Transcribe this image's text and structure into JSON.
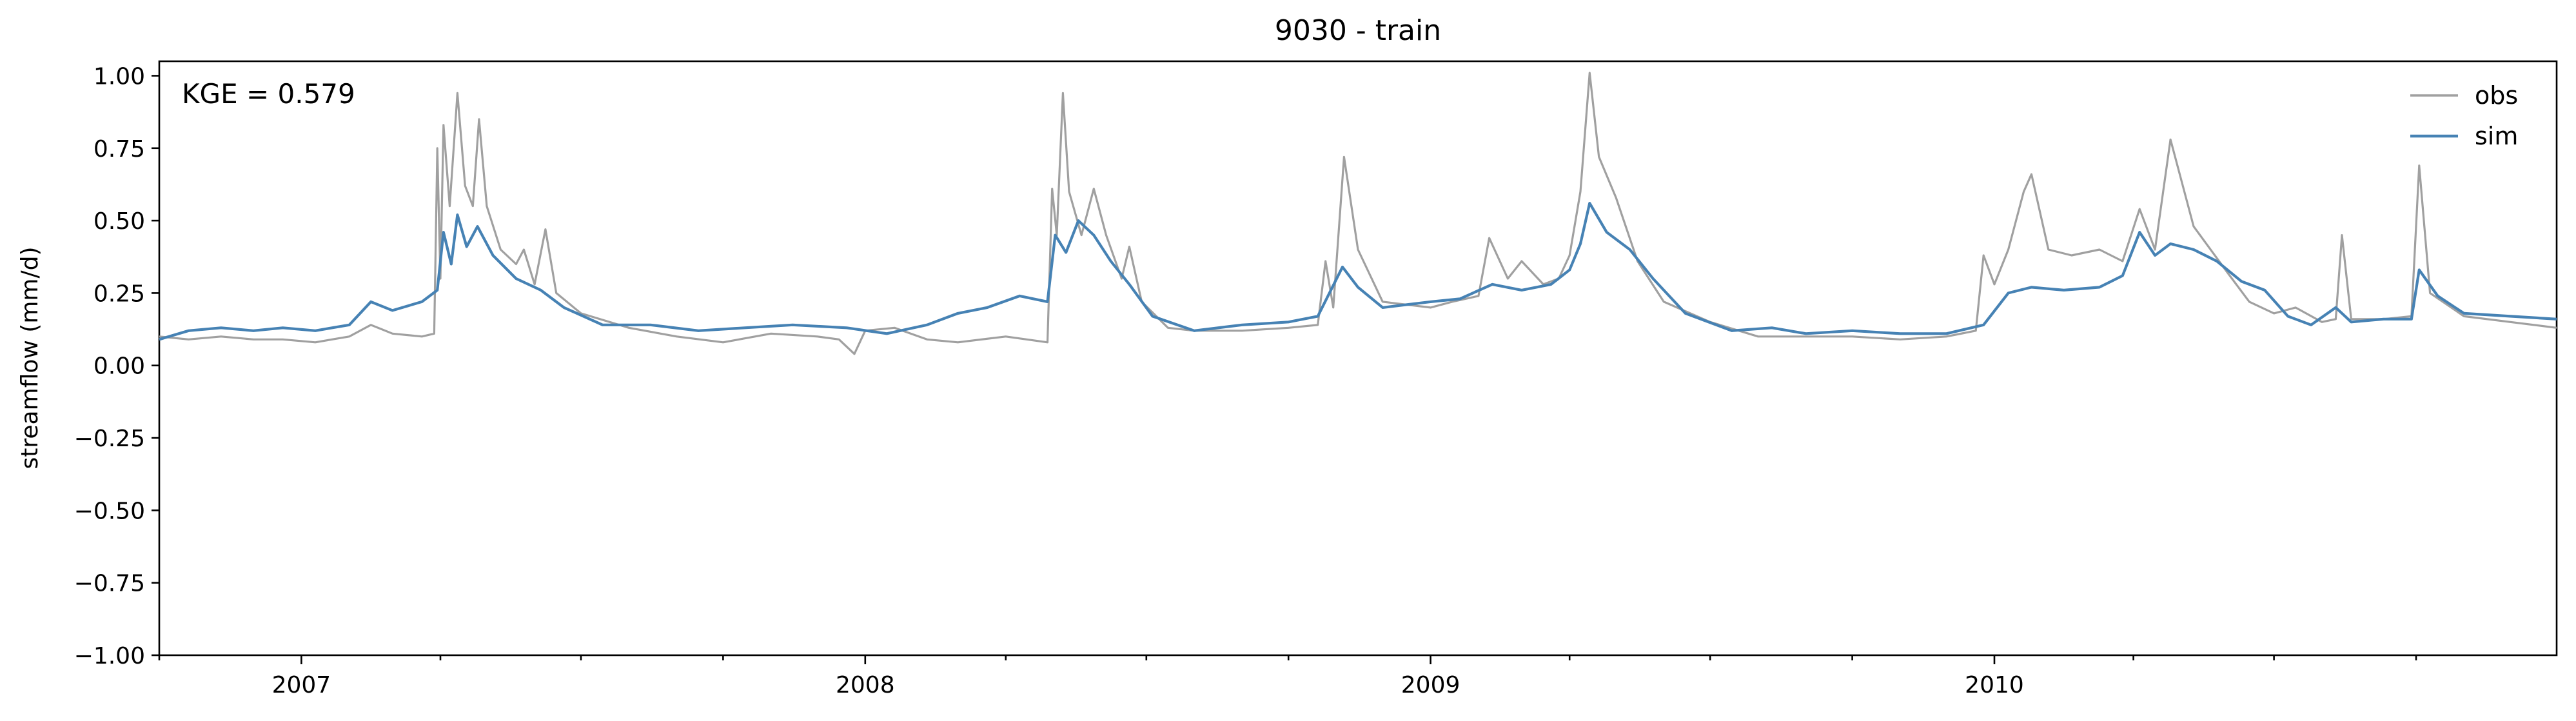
{
  "chart_data": {
    "type": "line",
    "title": "9030 - train",
    "ylabel": "streamflow (mm/d)",
    "xlabel": "",
    "annotation": "KGE = 0.579",
    "xlim": [
      "2006-10-01",
      "2010-12-31"
    ],
    "ylim": [
      -1.0,
      1.05
    ],
    "yticks": [
      -1.0,
      -0.75,
      -0.5,
      -0.25,
      0.0,
      0.25,
      0.5,
      0.75,
      1.0
    ],
    "ytick_labels": [
      "−1.00",
      "−0.75",
      "−0.50",
      "−0.25",
      "0.00",
      "0.25",
      "0.50",
      "0.75",
      "1.00"
    ],
    "xticks": [
      "2007-01-01",
      "2008-01-01",
      "2009-01-01",
      "2010-01-01"
    ],
    "xtick_labels": [
      "2007",
      "2008",
      "2009",
      "2010"
    ],
    "grid": false,
    "legend_position": "top-right",
    "series": [
      {
        "name": "obs",
        "color": "#a0a0a0",
        "points": [
          [
            "2006-10-01",
            0.1
          ],
          [
            "2006-10-20",
            0.09
          ],
          [
            "2006-11-10",
            0.1
          ],
          [
            "2006-12-01",
            0.09
          ],
          [
            "2006-12-20",
            0.09
          ],
          [
            "2007-01-10",
            0.08
          ],
          [
            "2007-02-01",
            0.1
          ],
          [
            "2007-02-15",
            0.14
          ],
          [
            "2007-03-01",
            0.11
          ],
          [
            "2007-03-20",
            0.1
          ],
          [
            "2007-03-28",
            0.11
          ],
          [
            "2007-03-30",
            0.75
          ],
          [
            "2007-04-01",
            0.3
          ],
          [
            "2007-04-03",
            0.83
          ],
          [
            "2007-04-07",
            0.55
          ],
          [
            "2007-04-12",
            0.94
          ],
          [
            "2007-04-17",
            0.62
          ],
          [
            "2007-04-22",
            0.55
          ],
          [
            "2007-04-26",
            0.85
          ],
          [
            "2007-05-01",
            0.55
          ],
          [
            "2007-05-10",
            0.4
          ],
          [
            "2007-05-20",
            0.35
          ],
          [
            "2007-05-25",
            0.4
          ],
          [
            "2007-06-01",
            0.28
          ],
          [
            "2007-06-08",
            0.47
          ],
          [
            "2007-06-15",
            0.25
          ],
          [
            "2007-07-01",
            0.18
          ],
          [
            "2007-08-01",
            0.13
          ],
          [
            "2007-09-01",
            0.1
          ],
          [
            "2007-10-01",
            0.08
          ],
          [
            "2007-11-01",
            0.11
          ],
          [
            "2007-12-01",
            0.1
          ],
          [
            "2007-12-15",
            0.09
          ],
          [
            "2007-12-25",
            0.04
          ],
          [
            "2008-01-01",
            0.12
          ],
          [
            "2008-01-20",
            0.13
          ],
          [
            "2008-02-10",
            0.09
          ],
          [
            "2008-03-01",
            0.08
          ],
          [
            "2008-04-01",
            0.1
          ],
          [
            "2008-04-28",
            0.08
          ],
          [
            "2008-05-01",
            0.61
          ],
          [
            "2008-05-04",
            0.45
          ],
          [
            "2008-05-08",
            0.94
          ],
          [
            "2008-05-12",
            0.6
          ],
          [
            "2008-05-20",
            0.45
          ],
          [
            "2008-05-28",
            0.61
          ],
          [
            "2008-06-05",
            0.45
          ],
          [
            "2008-06-15",
            0.3
          ],
          [
            "2008-06-20",
            0.41
          ],
          [
            "2008-06-28",
            0.22
          ],
          [
            "2008-07-15",
            0.13
          ],
          [
            "2008-08-01",
            0.12
          ],
          [
            "2008-09-01",
            0.12
          ],
          [
            "2008-10-01",
            0.13
          ],
          [
            "2008-10-20",
            0.14
          ],
          [
            "2008-10-25",
            0.36
          ],
          [
            "2008-10-30",
            0.2
          ],
          [
            "2008-11-06",
            0.72
          ],
          [
            "2008-11-15",
            0.4
          ],
          [
            "2008-12-01",
            0.22
          ],
          [
            "2009-01-01",
            0.2
          ],
          [
            "2009-01-15",
            0.22
          ],
          [
            "2009-02-01",
            0.24
          ],
          [
            "2009-02-08",
            0.44
          ],
          [
            "2009-02-20",
            0.3
          ],
          [
            "2009-03-01",
            0.36
          ],
          [
            "2009-03-15",
            0.28
          ],
          [
            "2009-03-25",
            0.3
          ],
          [
            "2009-04-01",
            0.38
          ],
          [
            "2009-04-08",
            0.6
          ],
          [
            "2009-04-14",
            1.01
          ],
          [
            "2009-04-20",
            0.72
          ],
          [
            "2009-05-01",
            0.58
          ],
          [
            "2009-05-15",
            0.36
          ],
          [
            "2009-06-01",
            0.22
          ],
          [
            "2009-07-01",
            0.15
          ],
          [
            "2009-08-01",
            0.1
          ],
          [
            "2009-09-01",
            0.1
          ],
          [
            "2009-10-01",
            0.1
          ],
          [
            "2009-11-01",
            0.09
          ],
          [
            "2009-12-01",
            0.1
          ],
          [
            "2009-12-20",
            0.12
          ],
          [
            "2009-12-25",
            0.38
          ],
          [
            "2010-01-01",
            0.28
          ],
          [
            "2010-01-10",
            0.4
          ],
          [
            "2010-01-20",
            0.6
          ],
          [
            "2010-01-25",
            0.66
          ],
          [
            "2010-02-05",
            0.4
          ],
          [
            "2010-02-20",
            0.38
          ],
          [
            "2010-03-10",
            0.4
          ],
          [
            "2010-03-25",
            0.36
          ],
          [
            "2010-04-05",
            0.54
          ],
          [
            "2010-04-15",
            0.4
          ],
          [
            "2010-04-25",
            0.78
          ],
          [
            "2010-05-10",
            0.48
          ],
          [
            "2010-06-01",
            0.32
          ],
          [
            "2010-06-15",
            0.22
          ],
          [
            "2010-07-01",
            0.18
          ],
          [
            "2010-07-15",
            0.2
          ],
          [
            "2010-08-01",
            0.15
          ],
          [
            "2010-08-10",
            0.16
          ],
          [
            "2010-08-14",
            0.45
          ],
          [
            "2010-08-20",
            0.16
          ],
          [
            "2010-09-10",
            0.16
          ],
          [
            "2010-09-28",
            0.17
          ],
          [
            "2010-10-03",
            0.69
          ],
          [
            "2010-10-10",
            0.25
          ],
          [
            "2010-11-01",
            0.17
          ],
          [
            "2010-12-01",
            0.15
          ],
          [
            "2010-12-31",
            0.13
          ]
        ]
      },
      {
        "name": "sim",
        "color": "#4682b4",
        "points": [
          [
            "2006-10-01",
            0.09
          ],
          [
            "2006-10-20",
            0.12
          ],
          [
            "2006-11-10",
            0.13
          ],
          [
            "2006-12-01",
            0.12
          ],
          [
            "2006-12-20",
            0.13
          ],
          [
            "2007-01-10",
            0.12
          ],
          [
            "2007-02-01",
            0.14
          ],
          [
            "2007-02-15",
            0.22
          ],
          [
            "2007-03-01",
            0.19
          ],
          [
            "2007-03-20",
            0.22
          ],
          [
            "2007-03-30",
            0.26
          ],
          [
            "2007-04-03",
            0.46
          ],
          [
            "2007-04-08",
            0.35
          ],
          [
            "2007-04-12",
            0.52
          ],
          [
            "2007-04-18",
            0.41
          ],
          [
            "2007-04-25",
            0.48
          ],
          [
            "2007-05-05",
            0.38
          ],
          [
            "2007-05-20",
            0.3
          ],
          [
            "2007-06-05",
            0.26
          ],
          [
            "2007-06-20",
            0.2
          ],
          [
            "2007-07-15",
            0.14
          ],
          [
            "2007-08-15",
            0.14
          ],
          [
            "2007-09-15",
            0.12
          ],
          [
            "2007-10-15",
            0.13
          ],
          [
            "2007-11-15",
            0.14
          ],
          [
            "2007-12-20",
            0.13
          ],
          [
            "2008-01-15",
            0.11
          ],
          [
            "2008-02-10",
            0.14
          ],
          [
            "2008-03-01",
            0.18
          ],
          [
            "2008-03-20",
            0.2
          ],
          [
            "2008-04-10",
            0.24
          ],
          [
            "2008-04-28",
            0.22
          ],
          [
            "2008-05-03",
            0.45
          ],
          [
            "2008-05-10",
            0.39
          ],
          [
            "2008-05-18",
            0.5
          ],
          [
            "2008-05-28",
            0.45
          ],
          [
            "2008-06-08",
            0.36
          ],
          [
            "2008-06-20",
            0.28
          ],
          [
            "2008-07-05",
            0.17
          ],
          [
            "2008-08-01",
            0.12
          ],
          [
            "2008-09-01",
            0.14
          ],
          [
            "2008-10-01",
            0.15
          ],
          [
            "2008-10-20",
            0.17
          ],
          [
            "2008-11-05",
            0.34
          ],
          [
            "2008-11-15",
            0.27
          ],
          [
            "2008-12-01",
            0.2
          ],
          [
            "2009-01-01",
            0.22
          ],
          [
            "2009-01-20",
            0.23
          ],
          [
            "2009-02-10",
            0.28
          ],
          [
            "2009-03-01",
            0.26
          ],
          [
            "2009-03-20",
            0.28
          ],
          [
            "2009-04-01",
            0.33
          ],
          [
            "2009-04-08",
            0.42
          ],
          [
            "2009-04-14",
            0.56
          ],
          [
            "2009-04-25",
            0.46
          ],
          [
            "2009-05-10",
            0.4
          ],
          [
            "2009-05-25",
            0.3
          ],
          [
            "2009-06-15",
            0.18
          ],
          [
            "2009-07-15",
            0.12
          ],
          [
            "2009-08-10",
            0.13
          ],
          [
            "2009-09-01",
            0.11
          ],
          [
            "2009-10-01",
            0.12
          ],
          [
            "2009-11-01",
            0.11
          ],
          [
            "2009-12-01",
            0.11
          ],
          [
            "2009-12-25",
            0.14
          ],
          [
            "2010-01-10",
            0.25
          ],
          [
            "2010-01-25",
            0.27
          ],
          [
            "2010-02-15",
            0.26
          ],
          [
            "2010-03-10",
            0.27
          ],
          [
            "2010-03-25",
            0.31
          ],
          [
            "2010-04-05",
            0.46
          ],
          [
            "2010-04-15",
            0.38
          ],
          [
            "2010-04-25",
            0.42
          ],
          [
            "2010-05-10",
            0.4
          ],
          [
            "2010-05-25",
            0.36
          ],
          [
            "2010-06-10",
            0.29
          ],
          [
            "2010-06-25",
            0.26
          ],
          [
            "2010-07-10",
            0.17
          ],
          [
            "2010-07-25",
            0.14
          ],
          [
            "2010-08-10",
            0.2
          ],
          [
            "2010-08-20",
            0.15
          ],
          [
            "2010-09-10",
            0.16
          ],
          [
            "2010-09-28",
            0.16
          ],
          [
            "2010-10-03",
            0.33
          ],
          [
            "2010-10-15",
            0.24
          ],
          [
            "2010-11-01",
            0.18
          ],
          [
            "2010-12-01",
            0.17
          ],
          [
            "2010-12-31",
            0.16
          ]
        ]
      }
    ]
  }
}
